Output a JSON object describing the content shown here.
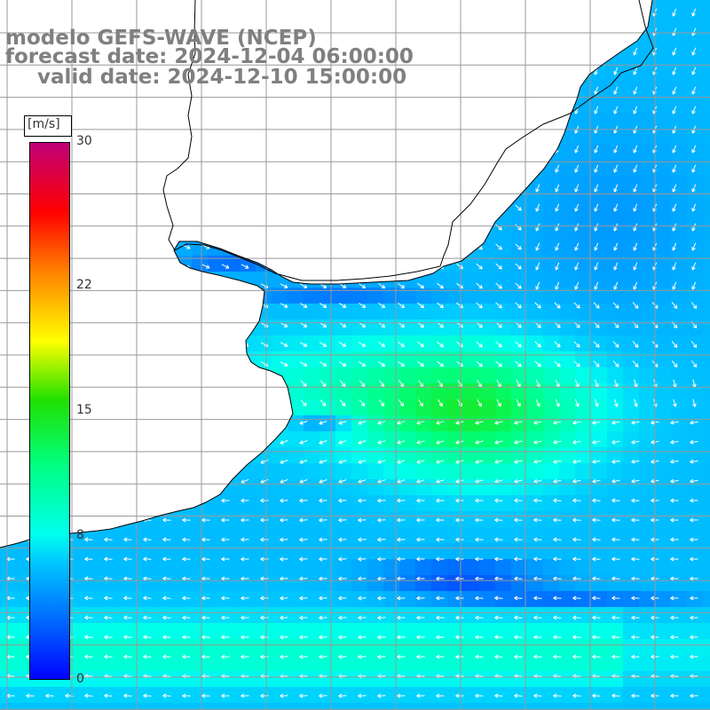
{
  "title": {
    "line1": "modelo GEFS-WAVE (NCEP)",
    "line2": "forecast date: 2024-12-04 06:00:00",
    "line3": "valid date: 2024-12-10 15:00:00"
  },
  "colorbar": {
    "units": "[m/s]",
    "tick_labels": [
      "30",
      "22",
      "15",
      "8",
      "0"
    ],
    "tick_values": [
      30,
      22,
      15,
      8,
      0
    ],
    "min": 0,
    "max": 30,
    "colors": [
      "#0000ff",
      "#0080ff",
      "#00ffff",
      "#00ff00",
      "#ffff00",
      "#ff8000",
      "#ff0000",
      "#c0007a"
    ]
  },
  "map": {
    "variable": "wind speed and direction",
    "land_color": "#ffffff",
    "coast_color": "#000000",
    "grid_color": "#999999"
  }
}
